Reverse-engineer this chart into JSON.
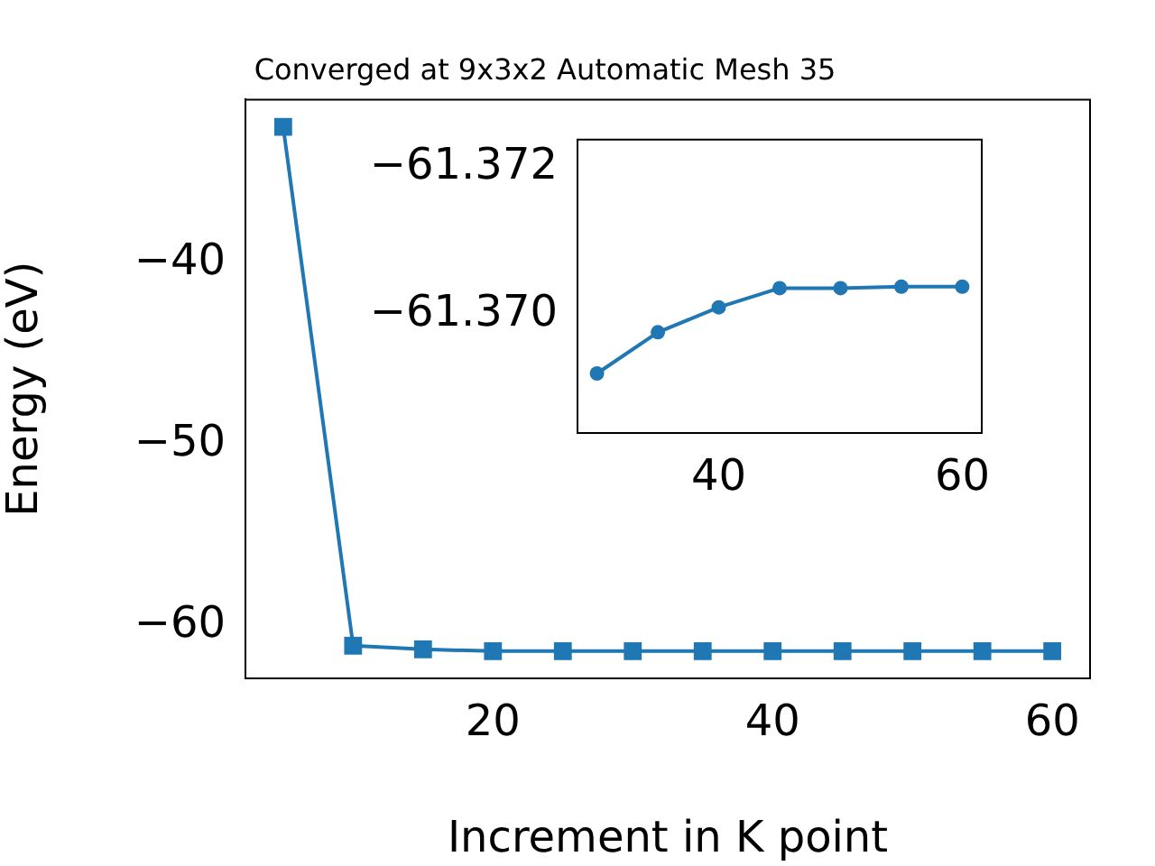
{
  "chart_data": [
    {
      "type": "line",
      "title": "Converged at 9x3x2 Automatic Mesh 35",
      "xlabel": "Increment in K point",
      "ylabel": "Energy (eV)",
      "x": [
        5,
        10,
        15,
        20,
        25,
        30,
        35,
        40,
        45,
        50,
        55,
        60
      ],
      "series": [
        {
          "color": "#1f77b4",
          "values": [
            -32.5,
            -61.1,
            -61.3,
            -61.4,
            -61.4,
            -61.4,
            -61.4,
            -61.4,
            -61.4,
            -61.4,
            -61.4,
            -61.4
          ]
        }
      ],
      "xlim": [
        2.3,
        62.7
      ],
      "ylim": [
        -62.9,
        -31.0
      ],
      "xticks": [
        20,
        40,
        60
      ],
      "yticks": [
        -40,
        -50,
        -60
      ],
      "marker": "square",
      "grid": false,
      "legend": false
    },
    {
      "type": "line",
      "x": [
        30,
        35,
        40,
        45,
        50,
        55,
        60
      ],
      "series": [
        {
          "color": "#1f77b4",
          "values": [
            -61.3692,
            -61.36976,
            -61.3701,
            -61.37036,
            -61.37036,
            -61.37038,
            -61.37038
          ]
        }
      ],
      "xlim": [
        28.4,
        61.6
      ],
      "ylim": [
        -61.36839,
        -61.37238
      ],
      "xticks": [
        40,
        60
      ],
      "yticks": [
        -61.372,
        {
          "value": -61.37,
          "label": "−61.370"
        }
      ],
      "marker": "circle",
      "grid": false,
      "legend": false
    }
  ]
}
